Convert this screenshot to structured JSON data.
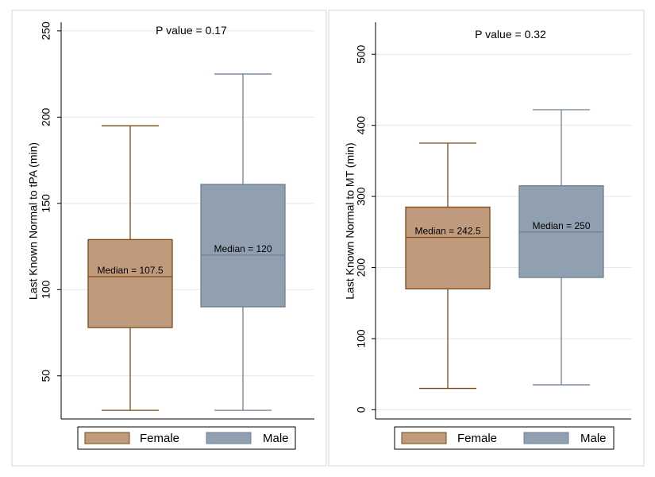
{
  "chart_data": [
    {
      "type": "box",
      "title": "P value = 0.17",
      "xlabel": "",
      "ylabel": "Last Known Normal to tPA (min)",
      "ylim": [
        25,
        255
      ],
      "yticks": [
        50,
        100,
        150,
        200,
        250
      ],
      "grid": true,
      "legend_position": "bottom",
      "series": [
        {
          "name": "Female",
          "color": "#c09a7c",
          "edge": "#7a4a12",
          "min": 30,
          "q1": 78,
          "median": 107.5,
          "q3": 129,
          "max": 195,
          "label": "Median = 107.5"
        },
        {
          "name": "Male",
          "color": "#90a0b1",
          "edge": "#6e8192",
          "min": 30,
          "q1": 90,
          "median": 120,
          "q3": 161,
          "max": 225,
          "label": "Median = 120"
        }
      ]
    },
    {
      "type": "box",
      "title": "P value = 0.32",
      "xlabel": "",
      "ylabel": "Last Known Normal to MT (min)",
      "ylim": [
        -13,
        545
      ],
      "yticks": [
        0,
        100,
        200,
        300,
        400,
        500
      ],
      "grid": true,
      "legend_position": "bottom",
      "series": [
        {
          "name": "Female",
          "color": "#c09a7c",
          "edge": "#7a4a12",
          "min": 30,
          "q1": 170,
          "median": 242.5,
          "q3": 285,
          "max": 375,
          "label": "Median = 242.5"
        },
        {
          "name": "Male",
          "color": "#90a0b1",
          "edge": "#6e8192",
          "min": 35,
          "q1": 186,
          "median": 250,
          "q3": 315,
          "max": 422,
          "label": "Median = 250"
        }
      ]
    }
  ]
}
